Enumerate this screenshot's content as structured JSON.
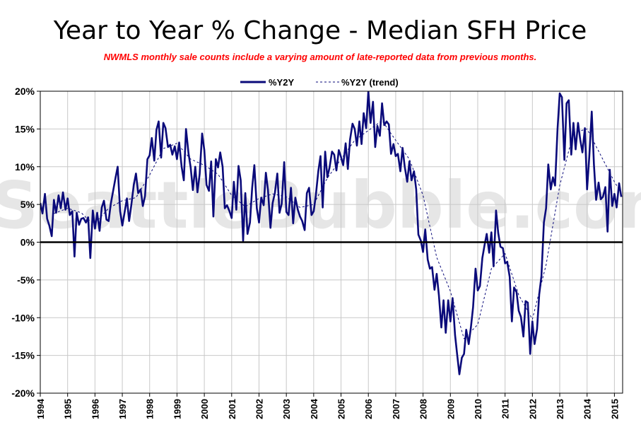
{
  "chart_data": {
    "type": "line",
    "title": "Year to Year % Change - Median SFH Price",
    "subtitle": "NWMLS monthly sale counts include a varying amount of late-reported  data from previous months.",
    "watermark": "SeattleBubble.com",
    "ylim": [
      -20,
      20
    ],
    "y_ticks": [
      "20%",
      "15%",
      "10%",
      "5%",
      "0%",
      "-5%",
      "-10%",
      "-15%",
      "-20%"
    ],
    "x_range": [
      1994,
      2015.3
    ],
    "x_ticks": [
      "1994",
      "1995",
      "1996",
      "1997",
      "1998",
      "1999",
      "2000",
      "2001",
      "2002",
      "2003",
      "2004",
      "2005",
      "2006",
      "2007",
      "2008",
      "2009",
      "2010",
      "2011",
      "2012",
      "2013",
      "2014",
      "2015"
    ],
    "grid": true,
    "legend_position": "top",
    "colors": {
      "series_main": "#0a0a7a",
      "series_trend": "#0a0a7a",
      "zero_line": "#000000",
      "subtitle": "#ff0000"
    },
    "series": [
      {
        "name": "%Y2Y",
        "style": "solid",
        "values": [
          [
            1994.0,
            5.2
          ],
          [
            1994.08,
            3.8
          ],
          [
            1994.17,
            6.4
          ],
          [
            1994.25,
            3.1
          ],
          [
            1994.33,
            2.2
          ],
          [
            1994.42,
            0.8
          ],
          [
            1994.5,
            5.6
          ],
          [
            1994.58,
            3.9
          ],
          [
            1994.67,
            6.2
          ],
          [
            1994.75,
            4.5
          ],
          [
            1994.83,
            6.6
          ],
          [
            1994.92,
            4.3
          ],
          [
            1995.0,
            5.8
          ],
          [
            1995.08,
            3.6
          ],
          [
            1995.17,
            4.1
          ],
          [
            1995.25,
            -1.9
          ],
          [
            1995.33,
            3.9
          ],
          [
            1995.42,
            2.3
          ],
          [
            1995.5,
            3.1
          ],
          [
            1995.58,
            3.2
          ],
          [
            1995.67,
            2.6
          ],
          [
            1995.75,
            3.3
          ],
          [
            1995.83,
            -2.1
          ],
          [
            1995.92,
            4.2
          ],
          [
            1996.0,
            1.8
          ],
          [
            1996.08,
            3.9
          ],
          [
            1996.17,
            1.5
          ],
          [
            1996.25,
            4.6
          ],
          [
            1996.33,
            5.5
          ],
          [
            1996.42,
            3.0
          ],
          [
            1996.5,
            2.8
          ],
          [
            1996.58,
            5.1
          ],
          [
            1996.67,
            6.9
          ],
          [
            1996.75,
            8.5
          ],
          [
            1996.83,
            10.0
          ],
          [
            1996.92,
            4.1
          ],
          [
            1997.0,
            2.2
          ],
          [
            1997.08,
            3.9
          ],
          [
            1997.17,
            5.8
          ],
          [
            1997.25,
            2.8
          ],
          [
            1997.33,
            4.9
          ],
          [
            1997.42,
            7.6
          ],
          [
            1997.5,
            9.1
          ],
          [
            1997.58,
            6.5
          ],
          [
            1997.67,
            7.0
          ],
          [
            1997.75,
            4.8
          ],
          [
            1997.83,
            6.1
          ],
          [
            1997.92,
            11.0
          ],
          [
            1998.0,
            11.5
          ],
          [
            1998.08,
            13.8
          ],
          [
            1998.17,
            10.8
          ],
          [
            1998.25,
            14.9
          ],
          [
            1998.33,
            16.0
          ],
          [
            1998.42,
            11.2
          ],
          [
            1998.5,
            15.8
          ],
          [
            1998.58,
            15.1
          ],
          [
            1998.67,
            12.6
          ],
          [
            1998.75,
            12.9
          ],
          [
            1998.83,
            11.6
          ],
          [
            1998.92,
            12.7
          ],
          [
            1999.0,
            11.0
          ],
          [
            1999.08,
            13.2
          ],
          [
            1999.17,
            10.0
          ],
          [
            1999.25,
            8.2
          ],
          [
            1999.33,
            15.0
          ],
          [
            1999.42,
            11.8
          ],
          [
            1999.5,
            9.9
          ],
          [
            1999.58,
            6.9
          ],
          [
            1999.67,
            10.0
          ],
          [
            1999.75,
            6.6
          ],
          [
            1999.83,
            9.0
          ],
          [
            1999.92,
            14.4
          ],
          [
            2000.0,
            12.2
          ],
          [
            2000.08,
            7.6
          ],
          [
            2000.17,
            6.8
          ],
          [
            2000.25,
            10.7
          ],
          [
            2000.33,
            3.4
          ],
          [
            2000.42,
            11.0
          ],
          [
            2000.5,
            9.9
          ],
          [
            2000.58,
            11.9
          ],
          [
            2000.67,
            10.0
          ],
          [
            2000.75,
            4.5
          ],
          [
            2000.83,
            4.9
          ],
          [
            2000.92,
            4.1
          ],
          [
            2001.0,
            3.2
          ],
          [
            2001.08,
            8.0
          ],
          [
            2001.17,
            4.3
          ],
          [
            2001.25,
            10.1
          ],
          [
            2001.33,
            8.2
          ],
          [
            2001.42,
            0.2
          ],
          [
            2001.5,
            6.5
          ],
          [
            2001.58,
            1.1
          ],
          [
            2001.67,
            2.6
          ],
          [
            2001.75,
            7.2
          ],
          [
            2001.83,
            10.2
          ],
          [
            2001.92,
            4.5
          ],
          [
            2002.0,
            2.6
          ],
          [
            2002.08,
            5.9
          ],
          [
            2002.17,
            4.9
          ],
          [
            2002.25,
            9.2
          ],
          [
            2002.33,
            6.9
          ],
          [
            2002.42,
            1.9
          ],
          [
            2002.5,
            5.2
          ],
          [
            2002.58,
            6.5
          ],
          [
            2002.67,
            9.1
          ],
          [
            2002.75,
            3.9
          ],
          [
            2002.83,
            5.1
          ],
          [
            2002.92,
            10.6
          ],
          [
            2003.0,
            4.0
          ],
          [
            2003.08,
            3.6
          ],
          [
            2003.17,
            7.2
          ],
          [
            2003.25,
            2.5
          ],
          [
            2003.33,
            5.9
          ],
          [
            2003.42,
            4.3
          ],
          [
            2003.5,
            3.4
          ],
          [
            2003.58,
            2.8
          ],
          [
            2003.67,
            1.6
          ],
          [
            2003.75,
            6.5
          ],
          [
            2003.83,
            7.2
          ],
          [
            2003.92,
            3.6
          ],
          [
            2004.0,
            4.1
          ],
          [
            2004.08,
            6.2
          ],
          [
            2004.17,
            9.4
          ],
          [
            2004.25,
            11.4
          ],
          [
            2004.33,
            4.6
          ],
          [
            2004.42,
            12.0
          ],
          [
            2004.5,
            8.6
          ],
          [
            2004.58,
            9.9
          ],
          [
            2004.67,
            12.0
          ],
          [
            2004.75,
            11.6
          ],
          [
            2004.83,
            9.5
          ],
          [
            2004.92,
            12.2
          ],
          [
            2005.0,
            11.3
          ],
          [
            2005.08,
            10.2
          ],
          [
            2005.17,
            13.1
          ],
          [
            2005.25,
            9.7
          ],
          [
            2005.33,
            13.6
          ],
          [
            2005.42,
            15.7
          ],
          [
            2005.5,
            15.0
          ],
          [
            2005.58,
            12.8
          ],
          [
            2005.67,
            16.0
          ],
          [
            2005.75,
            13.0
          ],
          [
            2005.83,
            17.1
          ],
          [
            2005.92,
            15.1
          ],
          [
            2006.0,
            20.0
          ],
          [
            2006.08,
            15.8
          ],
          [
            2006.17,
            18.6
          ],
          [
            2006.25,
            12.6
          ],
          [
            2006.33,
            15.4
          ],
          [
            2006.42,
            14.1
          ],
          [
            2006.5,
            18.4
          ],
          [
            2006.58,
            15.5
          ],
          [
            2006.67,
            16.0
          ],
          [
            2006.75,
            15.6
          ],
          [
            2006.83,
            11.7
          ],
          [
            2006.92,
            13.0
          ],
          [
            2007.0,
            11.4
          ],
          [
            2007.08,
            11.7
          ],
          [
            2007.17,
            9.4
          ],
          [
            2007.25,
            12.5
          ],
          [
            2007.33,
            10.0
          ],
          [
            2007.42,
            8.0
          ],
          [
            2007.5,
            10.7
          ],
          [
            2007.58,
            8.2
          ],
          [
            2007.67,
            9.4
          ],
          [
            2007.75,
            7.0
          ],
          [
            2007.83,
            1.0
          ],
          [
            2007.92,
            0.2
          ],
          [
            2008.0,
            -1.3
          ],
          [
            2008.08,
            1.7
          ],
          [
            2008.17,
            -2.3
          ],
          [
            2008.25,
            -3.5
          ],
          [
            2008.33,
            -3.3
          ],
          [
            2008.42,
            -6.3
          ],
          [
            2008.5,
            -4.2
          ],
          [
            2008.58,
            -7.0
          ],
          [
            2008.67,
            -11.3
          ],
          [
            2008.75,
            -7.7
          ],
          [
            2008.83,
            -12.0
          ],
          [
            2008.92,
            -7.7
          ],
          [
            2009.0,
            -10.5
          ],
          [
            2009.08,
            -7.4
          ],
          [
            2009.17,
            -12.3
          ],
          [
            2009.25,
            -15.0
          ],
          [
            2009.33,
            -17.5
          ],
          [
            2009.42,
            -15.3
          ],
          [
            2009.5,
            -14.8
          ],
          [
            2009.58,
            -11.6
          ],
          [
            2009.67,
            -13.5
          ],
          [
            2009.75,
            -11.3
          ],
          [
            2009.83,
            -8.6
          ],
          [
            2009.92,
            -3.5
          ],
          [
            2010.0,
            -6.4
          ],
          [
            2010.08,
            -5.8
          ],
          [
            2010.17,
            -2.1
          ],
          [
            2010.25,
            -0.4
          ],
          [
            2010.33,
            1.1
          ],
          [
            2010.42,
            -1.4
          ],
          [
            2010.5,
            1.3
          ],
          [
            2010.58,
            -3.2
          ],
          [
            2010.67,
            4.2
          ],
          [
            2010.75,
            1.2
          ],
          [
            2010.83,
            -0.6
          ],
          [
            2010.92,
            -0.8
          ],
          [
            2011.0,
            -2.8
          ],
          [
            2011.08,
            -2.6
          ],
          [
            2011.17,
            -4.6
          ],
          [
            2011.25,
            -10.5
          ],
          [
            2011.33,
            -6.0
          ],
          [
            2011.42,
            -6.6
          ],
          [
            2011.5,
            -9.1
          ],
          [
            2011.58,
            -9.9
          ],
          [
            2011.67,
            -12.5
          ],
          [
            2011.75,
            -7.8
          ],
          [
            2011.83,
            -8.0
          ],
          [
            2011.92,
            -14.8
          ],
          [
            2012.0,
            -10.5
          ],
          [
            2012.08,
            -13.5
          ],
          [
            2012.17,
            -11.5
          ],
          [
            2012.25,
            -6.9
          ],
          [
            2012.33,
            -4.5
          ],
          [
            2012.42,
            2.6
          ],
          [
            2012.5,
            4.5
          ],
          [
            2012.58,
            10.3
          ],
          [
            2012.67,
            7.0
          ],
          [
            2012.75,
            8.6
          ],
          [
            2012.83,
            7.5
          ],
          [
            2012.92,
            15.0
          ],
          [
            2013.0,
            19.7
          ],
          [
            2013.08,
            19.2
          ],
          [
            2013.17,
            10.9
          ],
          [
            2013.25,
            18.4
          ],
          [
            2013.33,
            18.8
          ],
          [
            2013.42,
            11.6
          ],
          [
            2013.5,
            15.8
          ],
          [
            2013.58,
            12.3
          ],
          [
            2013.67,
            15.8
          ],
          [
            2013.75,
            13.6
          ],
          [
            2013.83,
            11.9
          ],
          [
            2013.92,
            15.1
          ],
          [
            2014.0,
            7.0
          ],
          [
            2014.08,
            11.3
          ],
          [
            2014.17,
            17.3
          ],
          [
            2014.25,
            10.3
          ],
          [
            2014.33,
            5.6
          ],
          [
            2014.42,
            7.9
          ],
          [
            2014.5,
            5.7
          ],
          [
            2014.58,
            6.0
          ],
          [
            2014.67,
            7.3
          ],
          [
            2014.75,
            1.4
          ],
          [
            2014.83,
            9.6
          ],
          [
            2014.92,
            4.8
          ],
          [
            2015.0,
            6.4
          ],
          [
            2015.08,
            4.6
          ],
          [
            2015.17,
            7.8
          ],
          [
            2015.25,
            6.0
          ]
        ]
      },
      {
        "name": "%Y2Y (trend)",
        "style": "dashed",
        "values": [
          [
            1994.5,
            3.8
          ],
          [
            1995.0,
            4.5
          ],
          [
            1995.5,
            3.9
          ],
          [
            1995.75,
            3.0
          ],
          [
            1996.0,
            2.5
          ],
          [
            1996.5,
            4.5
          ],
          [
            1997.0,
            5.5
          ],
          [
            1997.5,
            5.9
          ],
          [
            1998.0,
            8.9
          ],
          [
            1998.5,
            12.4
          ],
          [
            1999.0,
            13.1
          ],
          [
            1999.5,
            11.0
          ],
          [
            2000.0,
            10.2
          ],
          [
            2000.5,
            9.0
          ],
          [
            2001.0,
            6.2
          ],
          [
            2001.5,
            4.7
          ],
          [
            2002.0,
            5.8
          ],
          [
            2002.5,
            6.4
          ],
          [
            2003.0,
            6.0
          ],
          [
            2003.5,
            4.6
          ],
          [
            2004.0,
            5.0
          ],
          [
            2004.5,
            8.5
          ],
          [
            2005.0,
            11.0
          ],
          [
            2005.5,
            13.5
          ],
          [
            2006.0,
            14.8
          ],
          [
            2006.5,
            16.1
          ],
          [
            2007.0,
            13.5
          ],
          [
            2007.5,
            11.0
          ],
          [
            2008.0,
            6.2
          ],
          [
            2008.5,
            -2.0
          ],
          [
            2009.0,
            -6.5
          ],
          [
            2009.5,
            -12.8
          ],
          [
            2010.0,
            -10.9
          ],
          [
            2010.5,
            -3.5
          ],
          [
            2011.0,
            -1.5
          ],
          [
            2011.5,
            -7.0
          ],
          [
            2012.0,
            -10.2
          ],
          [
            2012.5,
            -3.0
          ],
          [
            2013.0,
            7.5
          ],
          [
            2013.5,
            14.5
          ],
          [
            2014.0,
            15.0
          ],
          [
            2014.5,
            11.5
          ],
          [
            2015.0,
            8.0
          ],
          [
            2015.25,
            6.5
          ]
        ]
      }
    ]
  }
}
